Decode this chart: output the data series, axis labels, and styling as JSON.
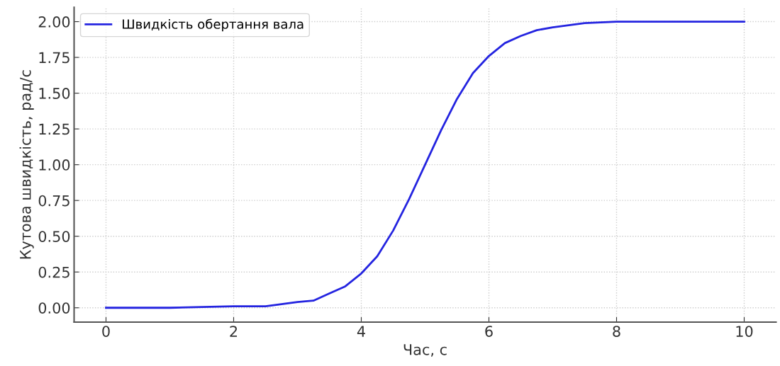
{
  "chart_data": {
    "type": "line",
    "xlabel": "Час, с",
    "ylabel": "Кутова швидкість, рад/с",
    "xlim": [
      -0.5,
      10.5
    ],
    "ylim": [
      -0.1,
      2.1
    ],
    "xticks": [
      0,
      2,
      4,
      6,
      8,
      10
    ],
    "yticks": [
      {
        "value": 0,
        "label": "0.00"
      },
      {
        "value": 0.25,
        "label": "0.25"
      },
      {
        "value": 0.5,
        "label": "0.50"
      },
      {
        "value": 0.75,
        "label": "0.75"
      },
      {
        "value": 1,
        "label": "1.00"
      },
      {
        "value": 1.25,
        "label": "1.25"
      },
      {
        "value": 1.5,
        "label": "1.50"
      },
      {
        "value": 1.75,
        "label": "1.75"
      },
      {
        "value": 2,
        "label": "2.00"
      }
    ],
    "grid": true,
    "legend": "top left",
    "line_style": "solid",
    "series": [
      {
        "name": "Швидкість обертання вала",
        "color": "#2424e0",
        "x": [
          0,
          1,
          2,
          2.5,
          3,
          3.25,
          3.5,
          3.75,
          4,
          4.25,
          4.5,
          4.75,
          5,
          5.25,
          5.5,
          5.75,
          6,
          6.25,
          6.5,
          6.75,
          7,
          7.5,
          8,
          9,
          10
        ],
        "values": [
          0,
          0,
          0.01,
          0.01,
          0.04,
          0.05,
          0.1,
          0.15,
          0.24,
          0.36,
          0.54,
          0.76,
          1.0,
          1.24,
          1.46,
          1.64,
          1.76,
          1.85,
          1.9,
          1.94,
          1.96,
          1.99,
          2.0,
          2.0,
          2.0
        ]
      }
    ]
  }
}
